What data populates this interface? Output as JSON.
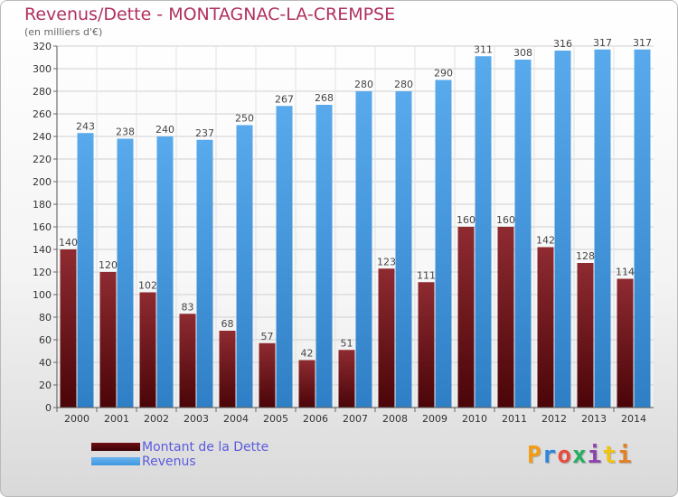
{
  "header": {
    "title": "Revenus/Dette - MONTAGNAC-LA-CREMPSE",
    "subtitle": "(en milliers d'€)"
  },
  "logo": {
    "text": "Proxiti",
    "colors": [
      "#f39c12",
      "#2e86de",
      "#e74c3c",
      "#27ae60",
      "#8e44ad",
      "#f1c40f",
      "#e67e22"
    ]
  },
  "colors": {
    "dette": "#6e0f15",
    "revenus": "#3f97e0"
  },
  "chart_data": {
    "type": "bar",
    "categories": [
      "2000",
      "2001",
      "2002",
      "2003",
      "2004",
      "2005",
      "2006",
      "2007",
      "2008",
      "2009",
      "2010",
      "2011",
      "2012",
      "2013",
      "2014"
    ],
    "series": [
      {
        "name": "Montant de la Dette",
        "values": [
          140,
          120,
          102,
          83,
          68,
          57,
          42,
          51,
          123,
          111,
          160,
          160,
          142,
          128,
          114
        ]
      },
      {
        "name": "Revenus",
        "values": [
          243,
          238,
          240,
          237,
          250,
          267,
          268,
          280,
          280,
          290,
          311,
          308,
          316,
          317,
          317
        ]
      }
    ],
    "yticks": [
      0,
      20,
      40,
      60,
      80,
      100,
      120,
      140,
      160,
      180,
      200,
      220,
      240,
      260,
      280,
      300,
      320
    ],
    "ylim": [
      0,
      320
    ],
    "grid": true,
    "legend": "bottom-left"
  }
}
